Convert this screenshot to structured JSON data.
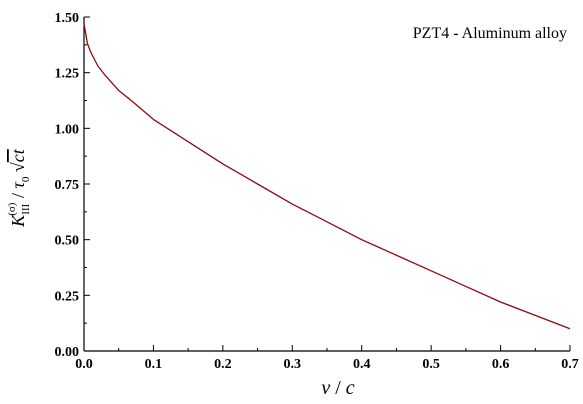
{
  "chart_data": {
    "type": "line",
    "annotation": "PZT4 - Aluminum alloy",
    "xlabel": "v / c",
    "ylabel": "K_III^(σ) / τ0 √(ct)",
    "xlim": [
      0.0,
      0.7
    ],
    "ylim": [
      0.0,
      1.5
    ],
    "x_ticks": [
      "0.0",
      "0.1",
      "0.2",
      "0.3",
      "0.4",
      "0.5",
      "0.6",
      "0.7"
    ],
    "y_ticks": [
      "0.00",
      "0.25",
      "0.50",
      "0.75",
      "1.00",
      "1.25",
      "1.50"
    ],
    "grid": false,
    "series": [
      {
        "color": "#8b0a14",
        "x": [
          0.0,
          0.005,
          0.01,
          0.02,
          0.03,
          0.05,
          0.07,
          0.1,
          0.15,
          0.2,
          0.25,
          0.3,
          0.35,
          0.4,
          0.45,
          0.5,
          0.55,
          0.6,
          0.65,
          0.7
        ],
        "y": [
          1.47,
          1.38,
          1.34,
          1.28,
          1.24,
          1.17,
          1.12,
          1.04,
          0.94,
          0.84,
          0.75,
          0.66,
          0.58,
          0.5,
          0.43,
          0.36,
          0.29,
          0.22,
          0.16,
          0.1
        ]
      }
    ]
  }
}
